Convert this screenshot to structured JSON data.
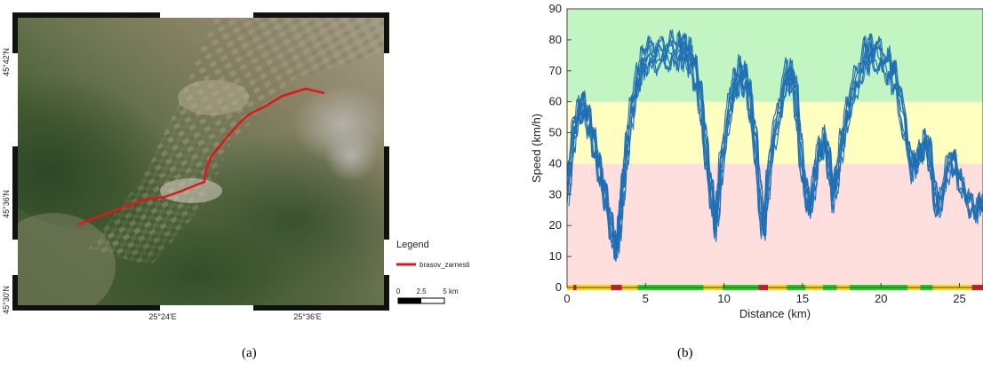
{
  "captions": {
    "a": "(a)",
    "b": "(b)"
  },
  "map": {
    "y_ticks": [
      "45°42'N",
      "45°36'N",
      "45°30'N"
    ],
    "x_ticks": [
      "25°24'E",
      "25°36'E"
    ],
    "legend_title": "Legend",
    "route_label": "brasov_zarnesti",
    "route_color": "#e0161b",
    "scalebar": {
      "labels": [
        "0",
        "2.5",
        "5 km"
      ]
    }
  },
  "chart_data": {
    "type": "line",
    "xlabel": "Distance (km)",
    "ylabel": "Speed (km/h)",
    "xlim": [
      0,
      26.5
    ],
    "ylim": [
      0,
      90
    ],
    "x_ticks": [
      "0",
      "5",
      "10",
      "15",
      "20",
      "25"
    ],
    "y_ticks": [
      "0",
      "10",
      "20",
      "30",
      "40",
      "50",
      "60",
      "70",
      "80",
      "90"
    ],
    "line_color": "#1f6fb4",
    "bands": [
      {
        "from": 0,
        "to": 40,
        "color": "#ffdede"
      },
      {
        "from": 40,
        "to": 60,
        "color": "#ffffbf"
      },
      {
        "from": 60,
        "to": 90,
        "color": "#c2f5c2"
      }
    ],
    "profile_x": [
      0,
      0.5,
      1.0,
      1.5,
      2.0,
      2.5,
      3.1,
      3.3,
      3.6,
      4.0,
      4.5,
      5.0,
      6.0,
      7.0,
      7.5,
      8.0,
      8.5,
      9.0,
      9.5,
      9.8,
      10.5,
      11.0,
      11.5,
      12.0,
      12.5,
      13.0,
      14.0,
      14.5,
      15.0,
      15.5,
      16.0,
      16.5,
      17.0,
      17.5,
      18.0,
      19.0,
      19.5,
      20.5,
      21.0,
      22.0,
      22.5,
      23.0,
      23.6,
      24.5,
      25.1,
      26.0,
      26.5
    ],
    "profile_y": [
      30,
      55,
      62,
      55,
      42,
      30,
      12,
      18,
      35,
      55,
      70,
      78,
      79,
      80,
      80,
      77,
      65,
      40,
      20,
      40,
      65,
      72,
      70,
      50,
      18,
      45,
      72,
      70,
      40,
      25,
      45,
      50,
      30,
      48,
      62,
      78,
      80,
      75,
      70,
      40,
      45,
      50,
      25,
      45,
      35,
      25,
      30
    ],
    "runs": 8,
    "run_spread": 9,
    "speed_bar": [
      {
        "from": 0,
        "to": 0.4,
        "color": "#ffd700"
      },
      {
        "from": 0.4,
        "to": 0.6,
        "color": "#e8141b"
      },
      {
        "from": 0.6,
        "to": 2.8,
        "color": "#ffd700"
      },
      {
        "from": 2.8,
        "to": 3.5,
        "color": "#e8141b"
      },
      {
        "from": 3.5,
        "to": 4.5,
        "color": "#ffd700"
      },
      {
        "from": 4.5,
        "to": 8.7,
        "color": "#1bd41b"
      },
      {
        "from": 8.7,
        "to": 9.9,
        "color": "#ffd700"
      },
      {
        "from": 9.9,
        "to": 12.2,
        "color": "#1bd41b"
      },
      {
        "from": 12.2,
        "to": 12.8,
        "color": "#e8141b"
      },
      {
        "from": 12.8,
        "to": 14.0,
        "color": "#ffd700"
      },
      {
        "from": 14.0,
        "to": 15.2,
        "color": "#1bd41b"
      },
      {
        "from": 15.2,
        "to": 16.3,
        "color": "#ffd700"
      },
      {
        "from": 16.3,
        "to": 17.2,
        "color": "#1bd41b"
      },
      {
        "from": 17.2,
        "to": 18.0,
        "color": "#ffd700"
      },
      {
        "from": 18.0,
        "to": 21.7,
        "color": "#1bd41b"
      },
      {
        "from": 21.7,
        "to": 22.5,
        "color": "#ffd700"
      },
      {
        "from": 22.5,
        "to": 23.3,
        "color": "#1bd41b"
      },
      {
        "from": 23.3,
        "to": 24.0,
        "color": "#ffd700"
      },
      {
        "from": 24.0,
        "to": 25.8,
        "color": "#ffd700"
      },
      {
        "from": 25.8,
        "to": 26.5,
        "color": "#e8141b"
      }
    ]
  }
}
